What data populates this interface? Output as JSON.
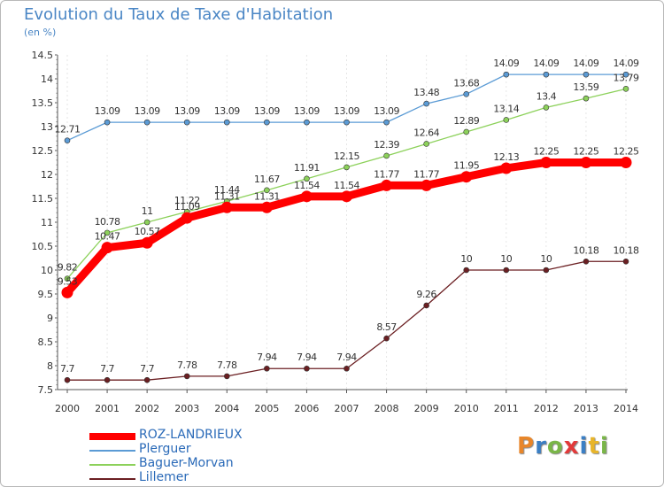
{
  "header": {
    "title": "Evolution du Taux de Taxe d'Habitation",
    "unit": "(en %)"
  },
  "logo": {
    "text": "Proxiti",
    "letters": [
      {
        "ch": "P",
        "color": "#e8862a"
      },
      {
        "ch": "r",
        "color": "#3b7fc4"
      },
      {
        "ch": "o",
        "color": "#7ab648"
      },
      {
        "ch": "x",
        "color": "#e23a3a"
      },
      {
        "ch": "i",
        "color": "#3b7fc4"
      },
      {
        "ch": "t",
        "color": "#e8b52a"
      },
      {
        "ch": "i",
        "color": "#7ab648"
      }
    ]
  },
  "chart_data": {
    "type": "line",
    "title": "Evolution du Taux de Taxe d'Habitation",
    "ylabel": "(en %)",
    "x": [
      2000,
      2001,
      2002,
      2003,
      2004,
      2005,
      2006,
      2007,
      2008,
      2009,
      2010,
      2011,
      2012,
      2013,
      2014
    ],
    "ylim": [
      7.5,
      14.5
    ],
    "yticks": [
      7.5,
      8,
      8.5,
      9,
      9.5,
      10,
      10.5,
      11,
      11.5,
      12,
      12.5,
      13,
      13.5,
      14,
      14.5
    ],
    "legend_position": "bottom-left",
    "series": [
      {
        "name": "ROZ-LANDRIEUX",
        "color": "#ff0000",
        "values": [
          9.53,
          10.47,
          10.57,
          11.09,
          11.31,
          11.31,
          11.54,
          11.54,
          11.77,
          11.77,
          11.95,
          12.13,
          12.25,
          12.25,
          12.25
        ],
        "labels": [
          "9.53",
          "10.47",
          "10.57",
          "11.09",
          "11.31",
          "11.31",
          "11.54",
          "11.54",
          "11.77",
          "11.77",
          "11.95",
          "12.13",
          "12.25",
          "12.25",
          "12.25"
        ]
      },
      {
        "name": "Plerguer",
        "color": "#5b9bd5",
        "values": [
          12.71,
          13.09,
          13.09,
          13.09,
          13.09,
          13.09,
          13.09,
          13.09,
          13.09,
          13.48,
          13.68,
          14.09,
          14.09,
          14.09,
          14.09
        ],
        "labels": [
          "12.71",
          "13.09",
          "13.09",
          "13.09",
          "13.09",
          "13.09",
          "13.09",
          "13.09",
          "13.09",
          "13.48",
          "13.68",
          "14.09",
          "14.09",
          "14.09",
          "14.09"
        ]
      },
      {
        "name": "Baguer-Morvan",
        "color": "#8cd15a",
        "values": [
          9.82,
          10.78,
          11,
          11.22,
          11.44,
          11.67,
          11.91,
          12.15,
          12.39,
          12.64,
          12.89,
          13.14,
          13.4,
          13.59,
          13.79
        ],
        "labels": [
          "9.82",
          "10.78",
          "11",
          "11.22",
          "11.44",
          "11.67",
          "11.91",
          "12.15",
          "12.39",
          "12.64",
          "12.89",
          "13.14",
          "13.4",
          "13.59",
          "13.79"
        ]
      },
      {
        "name": "Lillemer",
        "color": "#6b1f22",
        "values": [
          7.7,
          7.7,
          7.7,
          7.78,
          7.78,
          7.94,
          7.94,
          7.94,
          8.57,
          9.26,
          10,
          10,
          10,
          10.18,
          10.18
        ],
        "labels": [
          "7.7",
          "7.7",
          "7.7",
          "7.78",
          "7.78",
          "7.94",
          "7.94",
          "7.94",
          "8.57",
          "9.26",
          "10",
          "10",
          "10",
          "10.18",
          "10.18"
        ]
      }
    ]
  }
}
